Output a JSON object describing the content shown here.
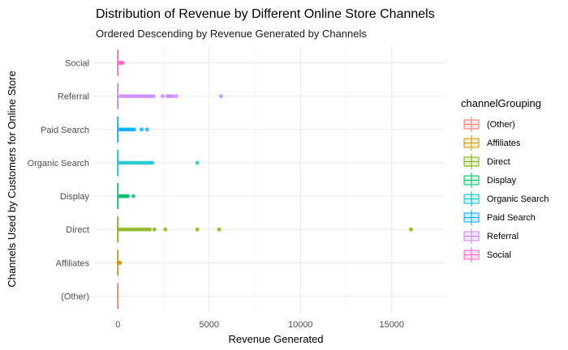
{
  "chart_data": {
    "type": "boxplot",
    "orientation": "horizontal",
    "title": "Distribution of Revenue by Different Online Store Channels",
    "subtitle": "Ordered Descending by Revenue Generated by Channels",
    "xlabel": "Revenue Generated",
    "ylabel": "Channels Used by Customers for Online Store",
    "xlim": [
      -1300,
      17900
    ],
    "x_ticks": [
      0,
      5000,
      10000,
      15000
    ],
    "x_tick_labels": [
      "0",
      "5000",
      "10000",
      "15000"
    ],
    "grid": true,
    "legend": {
      "title": "channelGrouping",
      "position": "right"
    },
    "categories": [
      "Social",
      "Referral",
      "Paid Search",
      "Organic Search",
      "Display",
      "Direct",
      "Affiliates",
      "(Other)"
    ],
    "series": [
      {
        "name": "Social",
        "color": "#FF61C3",
        "whisker_high": 40,
        "outliers": [
          90,
          150,
          200,
          260
        ]
      },
      {
        "name": "Referral",
        "color": "#C77CFF",
        "whisker_high": 60,
        "outliers": [
          150,
          300,
          450,
          600,
          750,
          900,
          1050,
          1200,
          1350,
          1500,
          1650,
          1800,
          1950,
          2450,
          2700,
          2850,
          3000,
          3200,
          5650
        ]
      },
      {
        "name": "Paid Search",
        "color": "#00A9FF",
        "whisker_high": 40,
        "outliers": [
          100,
          200,
          300,
          400,
          500,
          600,
          700,
          800,
          900,
          1300,
          1600
        ]
      },
      {
        "name": "Organic Search",
        "color": "#00BFC4",
        "whisker_high": 40,
        "outliers": [
          100,
          250,
          400,
          550,
          700,
          850,
          1000,
          1150,
          1300,
          1450,
          1600,
          1750,
          1900,
          4350
        ]
      },
      {
        "name": "Display",
        "color": "#00BE67",
        "whisker_high": 30,
        "outliers": [
          80,
          160,
          240,
          320,
          400,
          480,
          560,
          850
        ]
      },
      {
        "name": "Direct",
        "color": "#7CAE00",
        "whisker_high": 40,
        "outliers": [
          100,
          250,
          400,
          550,
          700,
          850,
          1000,
          1150,
          1300,
          1450,
          1600,
          1750,
          2000,
          2600,
          4350,
          5550,
          16050
        ]
      },
      {
        "name": "Affiliates",
        "color": "#CD9600",
        "whisker_high": 10,
        "outliers": [
          40,
          80,
          120
        ]
      },
      {
        "name": "(Other)",
        "color": "#F8766D",
        "whisker_high": 5,
        "outliers": []
      }
    ],
    "legend_order": [
      "(Other)",
      "Affiliates",
      "Direct",
      "Display",
      "Organic Search",
      "Paid Search",
      "Referral",
      "Social"
    ]
  }
}
